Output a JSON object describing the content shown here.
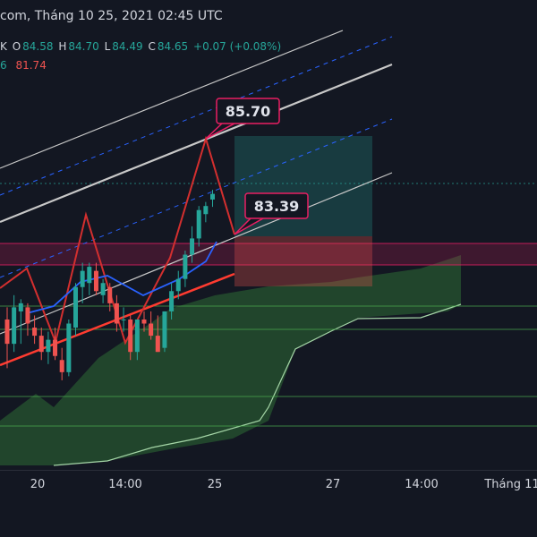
{
  "header": {
    "title_fragment": "com, Tháng 10 25, 2021 02:45 UTC"
  },
  "ohlc": {
    "k": "K",
    "o_label": "O",
    "o": "84.58",
    "h_label": "H",
    "h": "84.70",
    "l_label": "L",
    "l": "84.49",
    "c_label": "C",
    "c": "84.65",
    "change": "+0.07 (+0.08%)"
  },
  "indicator": {
    "fragment": "6",
    "value": "81.74"
  },
  "callouts": {
    "high": "85.70",
    "low": "83.39"
  },
  "colors": {
    "background": "#131722",
    "up": "#26a69a",
    "down": "#ef5350",
    "cloud_fill": "#2e6b34",
    "callout_border": "#e91e63",
    "zigzag": "#d32f2f",
    "channel": "#c8c8c8",
    "channel_dash": "#2962ff"
  },
  "chart_data": {
    "type": "candlestick",
    "y_range": [
      81.3,
      86.6
    ],
    "x_ticks": [
      "20",
      "14:00",
      "25",
      "27",
      "14:00",
      "Tháng 11"
    ],
    "candles": [
      {
        "o": 83.1,
        "h": 83.25,
        "l": 82.5,
        "c": 82.8
      },
      {
        "o": 82.8,
        "h": 83.4,
        "l": 82.7,
        "c": 83.25
      },
      {
        "o": 83.2,
        "h": 83.35,
        "l": 82.8,
        "c": 83.3
      },
      {
        "o": 83.25,
        "h": 83.3,
        "l": 82.9,
        "c": 83.05
      },
      {
        "o": 83.0,
        "h": 83.15,
        "l": 82.8,
        "c": 82.9
      },
      {
        "o": 82.9,
        "h": 83.0,
        "l": 82.6,
        "c": 82.7
      },
      {
        "o": 82.7,
        "h": 82.95,
        "l": 82.55,
        "c": 82.85
      },
      {
        "o": 82.85,
        "h": 83.0,
        "l": 82.6,
        "c": 82.65
      },
      {
        "o": 82.6,
        "h": 82.75,
        "l": 82.35,
        "c": 82.45
      },
      {
        "o": 82.45,
        "h": 83.1,
        "l": 82.4,
        "c": 83.05
      },
      {
        "o": 83.0,
        "h": 83.55,
        "l": 82.9,
        "c": 83.5
      },
      {
        "o": 83.5,
        "h": 83.8,
        "l": 83.3,
        "c": 83.7
      },
      {
        "o": 83.55,
        "h": 83.8,
        "l": 83.4,
        "c": 83.75
      },
      {
        "o": 83.7,
        "h": 83.8,
        "l": 83.4,
        "c": 83.45
      },
      {
        "o": 83.4,
        "h": 83.6,
        "l": 83.3,
        "c": 83.55
      },
      {
        "o": 83.5,
        "h": 83.55,
        "l": 83.2,
        "c": 83.3
      },
      {
        "o": 83.3,
        "h": 83.4,
        "l": 82.95,
        "c": 83.05
      },
      {
        "o": 83.1,
        "h": 83.25,
        "l": 82.95,
        "c": 83.1
      },
      {
        "o": 83.1,
        "h": 83.15,
        "l": 82.6,
        "c": 82.7
      },
      {
        "o": 82.7,
        "h": 83.1,
        "l": 82.6,
        "c": 83.1
      },
      {
        "o": 83.1,
        "h": 83.2,
        "l": 82.95,
        "c": 83.05
      },
      {
        "o": 83.05,
        "h": 83.2,
        "l": 82.85,
        "c": 82.9
      },
      {
        "o": 82.9,
        "h": 83.15,
        "l": 82.7,
        "c": 82.7
      },
      {
        "o": 82.75,
        "h": 83.2,
        "l": 82.7,
        "c": 83.2
      },
      {
        "o": 83.2,
        "h": 83.55,
        "l": 83.1,
        "c": 83.45
      },
      {
        "o": 83.45,
        "h": 83.7,
        "l": 83.35,
        "c": 83.6
      },
      {
        "o": 83.6,
        "h": 83.95,
        "l": 83.5,
        "c": 83.9
      },
      {
        "o": 83.9,
        "h": 84.25,
        "l": 83.8,
        "c": 84.1
      },
      {
        "o": 84.1,
        "h": 84.5,
        "l": 84.0,
        "c": 84.45
      },
      {
        "o": 84.4,
        "h": 84.55,
        "l": 84.3,
        "c": 84.5
      },
      {
        "o": 84.58,
        "h": 84.7,
        "l": 84.49,
        "c": 84.65
      }
    ]
  }
}
